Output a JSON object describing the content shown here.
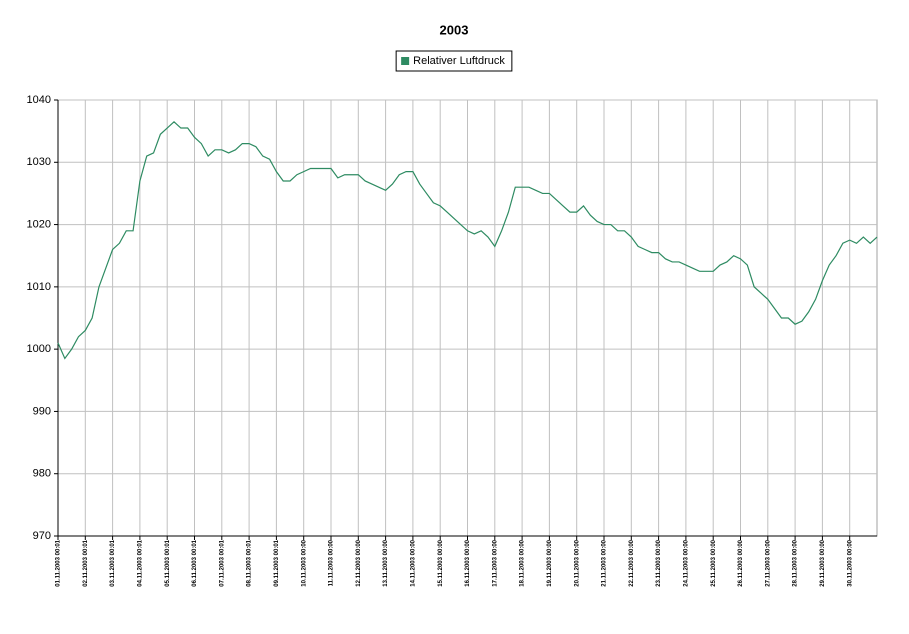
{
  "chart_data": {
    "type": "line",
    "title": "2003",
    "categories": [
      "01.11.2003 00:01",
      null,
      null,
      null,
      "02.11.2003 00:01",
      null,
      null,
      null,
      "03.11.2003 00:01",
      null,
      null,
      null,
      "04.11.2003 00:01",
      null,
      null,
      null,
      "05.11.2003 00:01",
      null,
      null,
      null,
      "06.11.2003 00:01",
      null,
      null,
      null,
      "07.11.2003 00:01",
      null,
      null,
      null,
      "08.11.2003 00:01",
      null,
      null,
      null,
      "09.11.2003 00:01",
      null,
      null,
      null,
      "10.11.2003 00:00",
      null,
      null,
      null,
      "11.11.2003 00:00",
      null,
      null,
      null,
      "12.11.2003 00:00",
      null,
      null,
      null,
      "13.11.2003 00:00",
      null,
      null,
      null,
      "14.11.2003 00:00",
      null,
      null,
      null,
      "15.11.2003 00:00",
      null,
      null,
      null,
      "16.11.2003 00:00",
      null,
      null,
      null,
      "17.11.2003 00:00",
      null,
      null,
      null,
      "18.11.2003 00:00",
      null,
      null,
      null,
      "19.11.2003 00:00",
      null,
      null,
      null,
      "20.11.2003 00:00",
      null,
      null,
      null,
      "21.11.2003 00:00",
      null,
      null,
      null,
      "22.11.2003 00:00",
      null,
      null,
      null,
      "23.11.2003 00:00",
      null,
      null,
      null,
      "24.11.2003 00:00",
      null,
      null,
      null,
      "25.11.2003 00:00",
      null,
      null,
      null,
      "26.11.2003 00:00",
      null,
      null,
      null,
      "27.11.2003 00:00",
      null,
      null,
      null,
      "28.11.2003 00:00",
      null,
      null,
      null,
      "29.11.2003 00:00",
      null,
      null,
      null,
      "30.11.2003 00:00",
      null,
      null,
      null,
      null
    ],
    "series": [
      {
        "name": "Relativer Luftdruck",
        "color": "#2e8b62",
        "values": [
          1001,
          998.5,
          1000,
          1002,
          1003,
          1005,
          1010,
          1013,
          1016,
          1017,
          1019,
          1019,
          1027,
          1031,
          1031.5,
          1034.5,
          1035.5,
          1036.5,
          1035.5,
          1035.5,
          1034,
          1033,
          1031,
          1032,
          1032,
          1031.5,
          1032,
          1033,
          1033,
          1032.5,
          1031,
          1030.5,
          1028.5,
          1027,
          1027,
          1028,
          1028.5,
          1029,
          1029,
          1029,
          1029,
          1027.5,
          1028,
          1028,
          1028,
          1027,
          1026.5,
          1026,
          1025.5,
          1026.5,
          1028,
          1028.5,
          1028.5,
          1026.5,
          1025,
          1023.5,
          1023,
          1022,
          1021,
          1020,
          1019,
          1018.5,
          1019,
          1018,
          1016.5,
          1019,
          1022,
          1026,
          1026,
          1026,
          1025.5,
          1025,
          1025,
          1024,
          1023,
          1022,
          1022,
          1023,
          1021.5,
          1020.5,
          1020,
          1020,
          1019,
          1019,
          1018,
          1016.5,
          1016,
          1015.5,
          1015.5,
          1014.5,
          1014,
          1014,
          1013.5,
          1013,
          1012.5,
          1012.5,
          1012.5,
          1013.5,
          1014,
          1015,
          1014.5,
          1013.5,
          1010,
          1009,
          1008,
          1006.5,
          1005,
          1005,
          1004,
          1004.5,
          1006,
          1008,
          1011,
          1013.5,
          1015,
          1017,
          1017.5,
          1017,
          1018,
          1017,
          1018
        ]
      }
    ],
    "ylim": [
      970,
      1040
    ],
    "yticks": [
      970,
      980,
      990,
      1000,
      1010,
      1020,
      1030,
      1040
    ],
    "grid": true,
    "legend": "top"
  }
}
